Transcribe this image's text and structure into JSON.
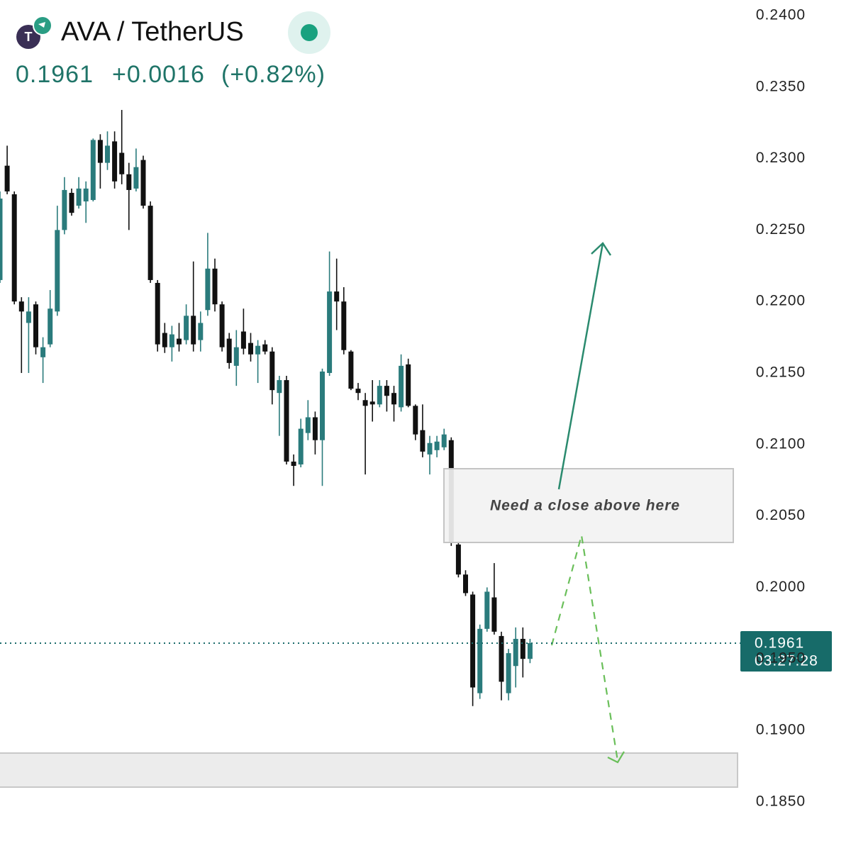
{
  "chart_data": {
    "type": "candlestick",
    "title": "AVA / TetherUS",
    "last_price": 0.1961,
    "change": "+0.0016",
    "change_percent": "(+0.82%)",
    "countdown": "03:27:28",
    "annotation": "Need a close above here",
    "up_color": "#2a7b7c",
    "down_color": "#111111",
    "open": [
      0.2215,
      0.2295,
      0.2275,
      0.22,
      0.2185,
      0.2198,
      0.2161,
      0.217,
      0.2193,
      0.225,
      0.2276,
      0.2267,
      0.227,
      0.2271,
      0.2313,
      0.2297,
      0.2312,
      0.2304,
      0.2289,
      0.2279,
      0.2299,
      0.2267,
      0.2213,
      0.2178,
      0.2168,
      0.2174,
      0.2173,
      0.219,
      0.2173,
      0.2194,
      0.2223,
      0.2198,
      0.2174,
      0.2155,
      0.2179,
      0.2171,
      0.2163,
      0.217,
      0.2165,
      0.2136,
      0.2145,
      0.2088,
      0.2086,
      0.2108,
      0.2119,
      0.2103,
      0.215,
      0.2207,
      0.22,
      0.2165,
      0.2139,
      0.2131,
      0.213,
      0.2128,
      0.2141,
      0.2136,
      0.2126,
      0.2156,
      0.2127,
      0.211,
      0.2093,
      0.2096,
      0.2098,
      0.2103,
      0.203,
      0.2009,
      0.1995,
      0.1926,
      0.1971,
      0.1993,
      0.1966,
      0.1926,
      0.1945,
      0.1964,
      0.195
    ],
    "high": [
      0.2277,
      0.2309,
      0.2277,
      0.2203,
      0.2203,
      0.22,
      0.2175,
      0.2208,
      0.2267,
      0.2287,
      0.2279,
      0.2287,
      0.2284,
      0.2314,
      0.2317,
      0.2319,
      0.2319,
      0.2334,
      0.2297,
      0.2307,
      0.2302,
      0.227,
      0.2215,
      0.2185,
      0.2183,
      0.2185,
      0.2198,
      0.2228,
      0.2193,
      0.2248,
      0.223,
      0.22,
      0.2178,
      0.218,
      0.2195,
      0.2178,
      0.2173,
      0.2173,
      0.2168,
      0.2148,
      0.2148,
      0.2093,
      0.2118,
      0.2131,
      0.2123,
      0.2153,
      0.2235,
      0.223,
      0.221,
      0.2166,
      0.2143,
      0.2136,
      0.2145,
      0.2145,
      0.2145,
      0.2141,
      0.2163,
      0.216,
      0.2128,
      0.2128,
      0.2106,
      0.2106,
      0.2111,
      0.2105,
      0.2032,
      0.2012,
      0.1997,
      0.1974,
      0.2,
      0.2017,
      0.1969,
      0.1957,
      0.1972,
      0.1972,
      0.1964
    ],
    "low": [
      0.2213,
      0.2275,
      0.2198,
      0.215,
      0.215,
      0.2163,
      0.2143,
      0.2168,
      0.219,
      0.2247,
      0.226,
      0.2265,
      0.2255,
      0.227,
      0.2279,
      0.2292,
      0.2279,
      0.2282,
      0.225,
      0.2277,
      0.2265,
      0.2213,
      0.2165,
      0.2164,
      0.2158,
      0.2165,
      0.217,
      0.2165,
      0.2165,
      0.219,
      0.2193,
      0.2165,
      0.2153,
      0.2141,
      0.2163,
      0.2158,
      0.2143,
      0.2163,
      0.2128,
      0.2106,
      0.2086,
      0.2071,
      0.2084,
      0.2103,
      0.2093,
      0.2071,
      0.2148,
      0.218,
      0.2163,
      0.2138,
      0.2131,
      0.2079,
      0.2116,
      0.2126,
      0.2123,
      0.2116,
      0.2123,
      0.2126,
      0.2103,
      0.2091,
      0.2079,
      0.2091,
      0.2096,
      0.2029,
      0.2007,
      0.1994,
      0.1917,
      0.1922,
      0.1969,
      0.1967,
      0.1921,
      0.1921,
      0.193,
      0.1937,
      0.1947
    ],
    "close": [
      0.2272,
      0.2277,
      0.22,
      0.2193,
      0.2193,
      0.2168,
      0.2168,
      0.2195,
      0.225,
      0.2278,
      0.2262,
      0.2279,
      0.2279,
      0.2313,
      0.2297,
      0.2309,
      0.2284,
      0.2289,
      0.2278,
      0.2294,
      0.2267,
      0.2215,
      0.217,
      0.2168,
      0.2177,
      0.217,
      0.219,
      0.217,
      0.2185,
      0.2223,
      0.2198,
      0.2168,
      0.2157,
      0.2168,
      0.2167,
      0.2163,
      0.2169,
      0.2165,
      0.2138,
      0.2145,
      0.2088,
      0.2085,
      0.2111,
      0.2119,
      0.2103,
      0.2151,
      0.2207,
      0.22,
      0.2166,
      0.2139,
      0.2136,
      0.2127,
      0.2128,
      0.2141,
      0.2134,
      0.2128,
      0.2155,
      0.2127,
      0.2107,
      0.2095,
      0.2101,
      0.2102,
      0.2107,
      0.2032,
      0.2009,
      0.1996,
      0.193,
      0.1971,
      0.1997,
      0.1969,
      0.1934,
      0.1954,
      0.1964,
      0.195,
      0.1961
    ],
    "ylim": [
      0.18226,
      0.24109
    ],
    "yticks": [
      {
        "value": 0.24,
        "label": "0.2400"
      },
      {
        "value": 0.235,
        "label": "0.2350"
      },
      {
        "value": 0.23,
        "label": "0.2300"
      },
      {
        "value": 0.225,
        "label": "0.2250"
      },
      {
        "value": 0.22,
        "label": "0.2200"
      },
      {
        "value": 0.215,
        "label": "0.2150"
      },
      {
        "value": 0.21,
        "label": "0.2100"
      },
      {
        "value": 0.205,
        "label": "0.2050"
      },
      {
        "value": 0.2,
        "label": "0.2000"
      },
      {
        "value": 0.195,
        "label": "0.1950"
      },
      {
        "value": 0.19,
        "label": "0.1900"
      },
      {
        "value": 0.185,
        "label": "0.1850"
      }
    ]
  }
}
